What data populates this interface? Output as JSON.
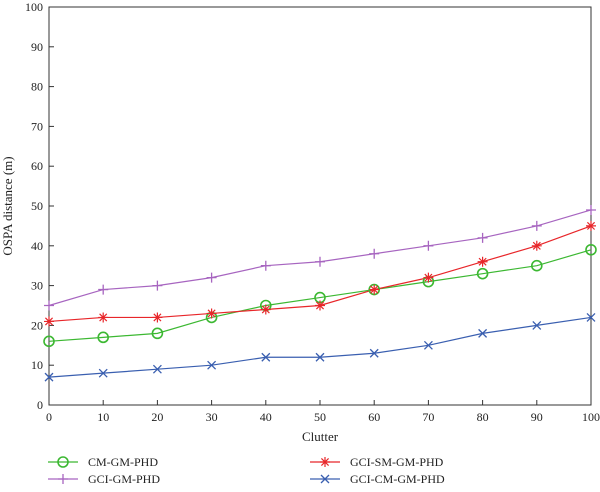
{
  "chart_data": {
    "type": "line",
    "xlabel": "Clutter",
    "ylabel": "OSPA distance (m)",
    "xlim": [
      0,
      100
    ],
    "ylim": [
      0,
      100
    ],
    "x_ticks": [
      0,
      10,
      20,
      30,
      40,
      50,
      60,
      70,
      80,
      90,
      100
    ],
    "y_ticks": [
      0,
      10,
      20,
      30,
      40,
      50,
      60,
      70,
      80,
      90,
      100
    ],
    "grid": false,
    "legend_position": "bottom",
    "x": [
      0,
      10,
      20,
      30,
      40,
      50,
      60,
      70,
      80,
      90,
      100
    ],
    "series": [
      {
        "name": "CM-GM-PHD",
        "color": "#3cb832",
        "marker": "circle",
        "values": [
          16,
          17,
          18,
          22,
          25,
          27,
          29,
          31,
          33,
          35,
          39
        ]
      },
      {
        "name": "GCI-SM-GM-PHD",
        "color": "#e8262a",
        "marker": "star",
        "values": [
          21,
          22,
          22,
          23,
          24,
          25,
          29,
          32,
          36,
          40,
          45
        ]
      },
      {
        "name": "GCI-GM-PHD",
        "color": "#a765c0",
        "marker": "plus",
        "values": [
          25,
          29,
          30,
          32,
          35,
          36,
          38,
          40,
          42,
          45,
          49
        ]
      },
      {
        "name": "GCI-CM-GM-PHD",
        "color": "#3a5fb0",
        "marker": "x",
        "values": [
          7,
          8,
          9,
          10,
          12,
          12,
          13,
          15,
          18,
          20,
          22
        ]
      }
    ]
  }
}
